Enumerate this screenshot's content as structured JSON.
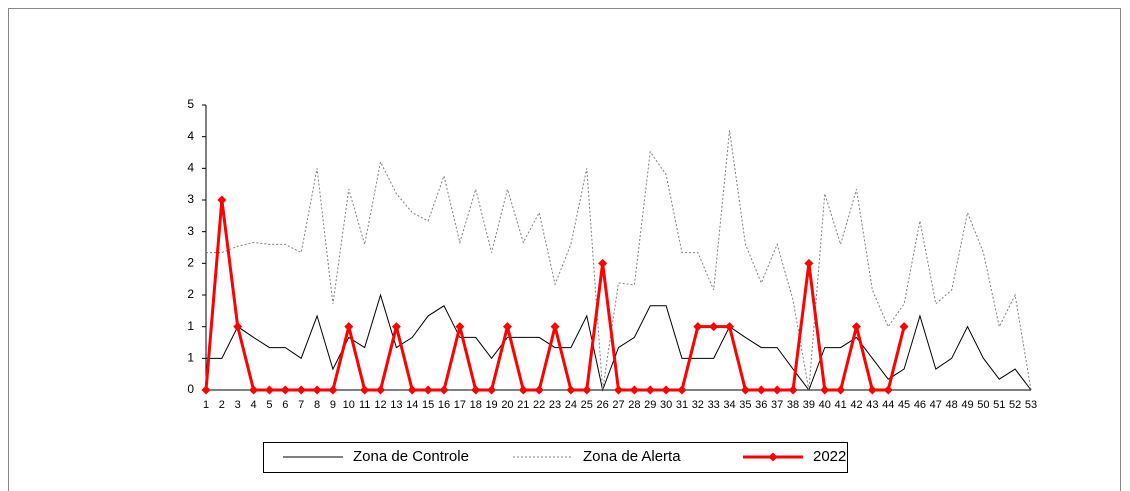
{
  "chart_data": {
    "type": "line",
    "categories": [
      1,
      2,
      3,
      4,
      5,
      6,
      7,
      8,
      9,
      10,
      11,
      12,
      13,
      14,
      15,
      16,
      17,
      18,
      19,
      20,
      21,
      22,
      23,
      24,
      25,
      26,
      27,
      28,
      29,
      30,
      31,
      32,
      33,
      34,
      35,
      36,
      37,
      38,
      39,
      40,
      41,
      42,
      43,
      44,
      45,
      46,
      47,
      48,
      49,
      50,
      51,
      52,
      53
    ],
    "ylim": [
      0,
      4.5
    ],
    "yticks": [
      0,
      {
        "value": 0.5,
        "label": "1"
      },
      1,
      {
        "value": 1.5,
        "label": "2"
      },
      2,
      {
        "value": 2.5,
        "label": "3"
      },
      3,
      {
        "value": 3.5,
        "label": "4"
      },
      4,
      {
        "value": 4.5,
        "label": "5"
      }
    ],
    "grid": false,
    "legend": "bottom",
    "series": [
      {
        "name": "Zona de Controle",
        "color": "#000000",
        "dashed": false,
        "marker": null,
        "values": [
          0.5,
          0.5,
          1.0,
          0.83,
          0.67,
          0.67,
          0.5,
          1.17,
          0.33,
          0.83,
          0.67,
          1.5,
          0.67,
          0.83,
          1.17,
          1.33,
          0.83,
          0.83,
          0.5,
          0.83,
          0.83,
          0.83,
          0.67,
          0.67,
          1.17,
          0,
          0.67,
          0.83,
          1.33,
          1.33,
          0.5,
          0.5,
          0.5,
          1.0,
          0.83,
          0.67,
          0.67,
          0.33,
          0,
          0.67,
          0.67,
          0.83,
          0.5,
          0.17,
          0.33,
          1.17,
          0.33,
          0.5,
          1.0,
          0.5,
          0.17,
          0.33,
          0
        ]
      },
      {
        "name": "Zona de Alerta",
        "color": "#808080",
        "dashed": true,
        "marker": null,
        "values": [
          2.17,
          2.17,
          2.27,
          2.33,
          2.3,
          2.3,
          2.17,
          3.5,
          1.36,
          3.17,
          2.3,
          3.6,
          3.1,
          2.8,
          2.67,
          3.38,
          2.33,
          3.17,
          2.17,
          3.17,
          2.33,
          2.8,
          1.67,
          2.3,
          3.5,
          0,
          1.69,
          1.66,
          3.76,
          3.4,
          2.17,
          2.17,
          1.58,
          4.1,
          2.3,
          1.69,
          2.3,
          1.42,
          0,
          3.1,
          2.3,
          3.17,
          1.58,
          1.0,
          1.36,
          2.67,
          1.36,
          1.58,
          2.8,
          2.17,
          1.0,
          1.5,
          0
        ]
      },
      {
        "name": "2022",
        "color": "#ff0000",
        "dashed": false,
        "marker": "diamond",
        "values": [
          0,
          3,
          1,
          0,
          0,
          0,
          0,
          0,
          0,
          1,
          0,
          0,
          1,
          0,
          0,
          0,
          1,
          0,
          0,
          1,
          0,
          0,
          1,
          0,
          0,
          2,
          0,
          0,
          0,
          0,
          0,
          1,
          1,
          1,
          0,
          0,
          0,
          0,
          2,
          0,
          0,
          1,
          0,
          0,
          1,
          null,
          null,
          null,
          null,
          null,
          null,
          null,
          null
        ]
      }
    ]
  }
}
